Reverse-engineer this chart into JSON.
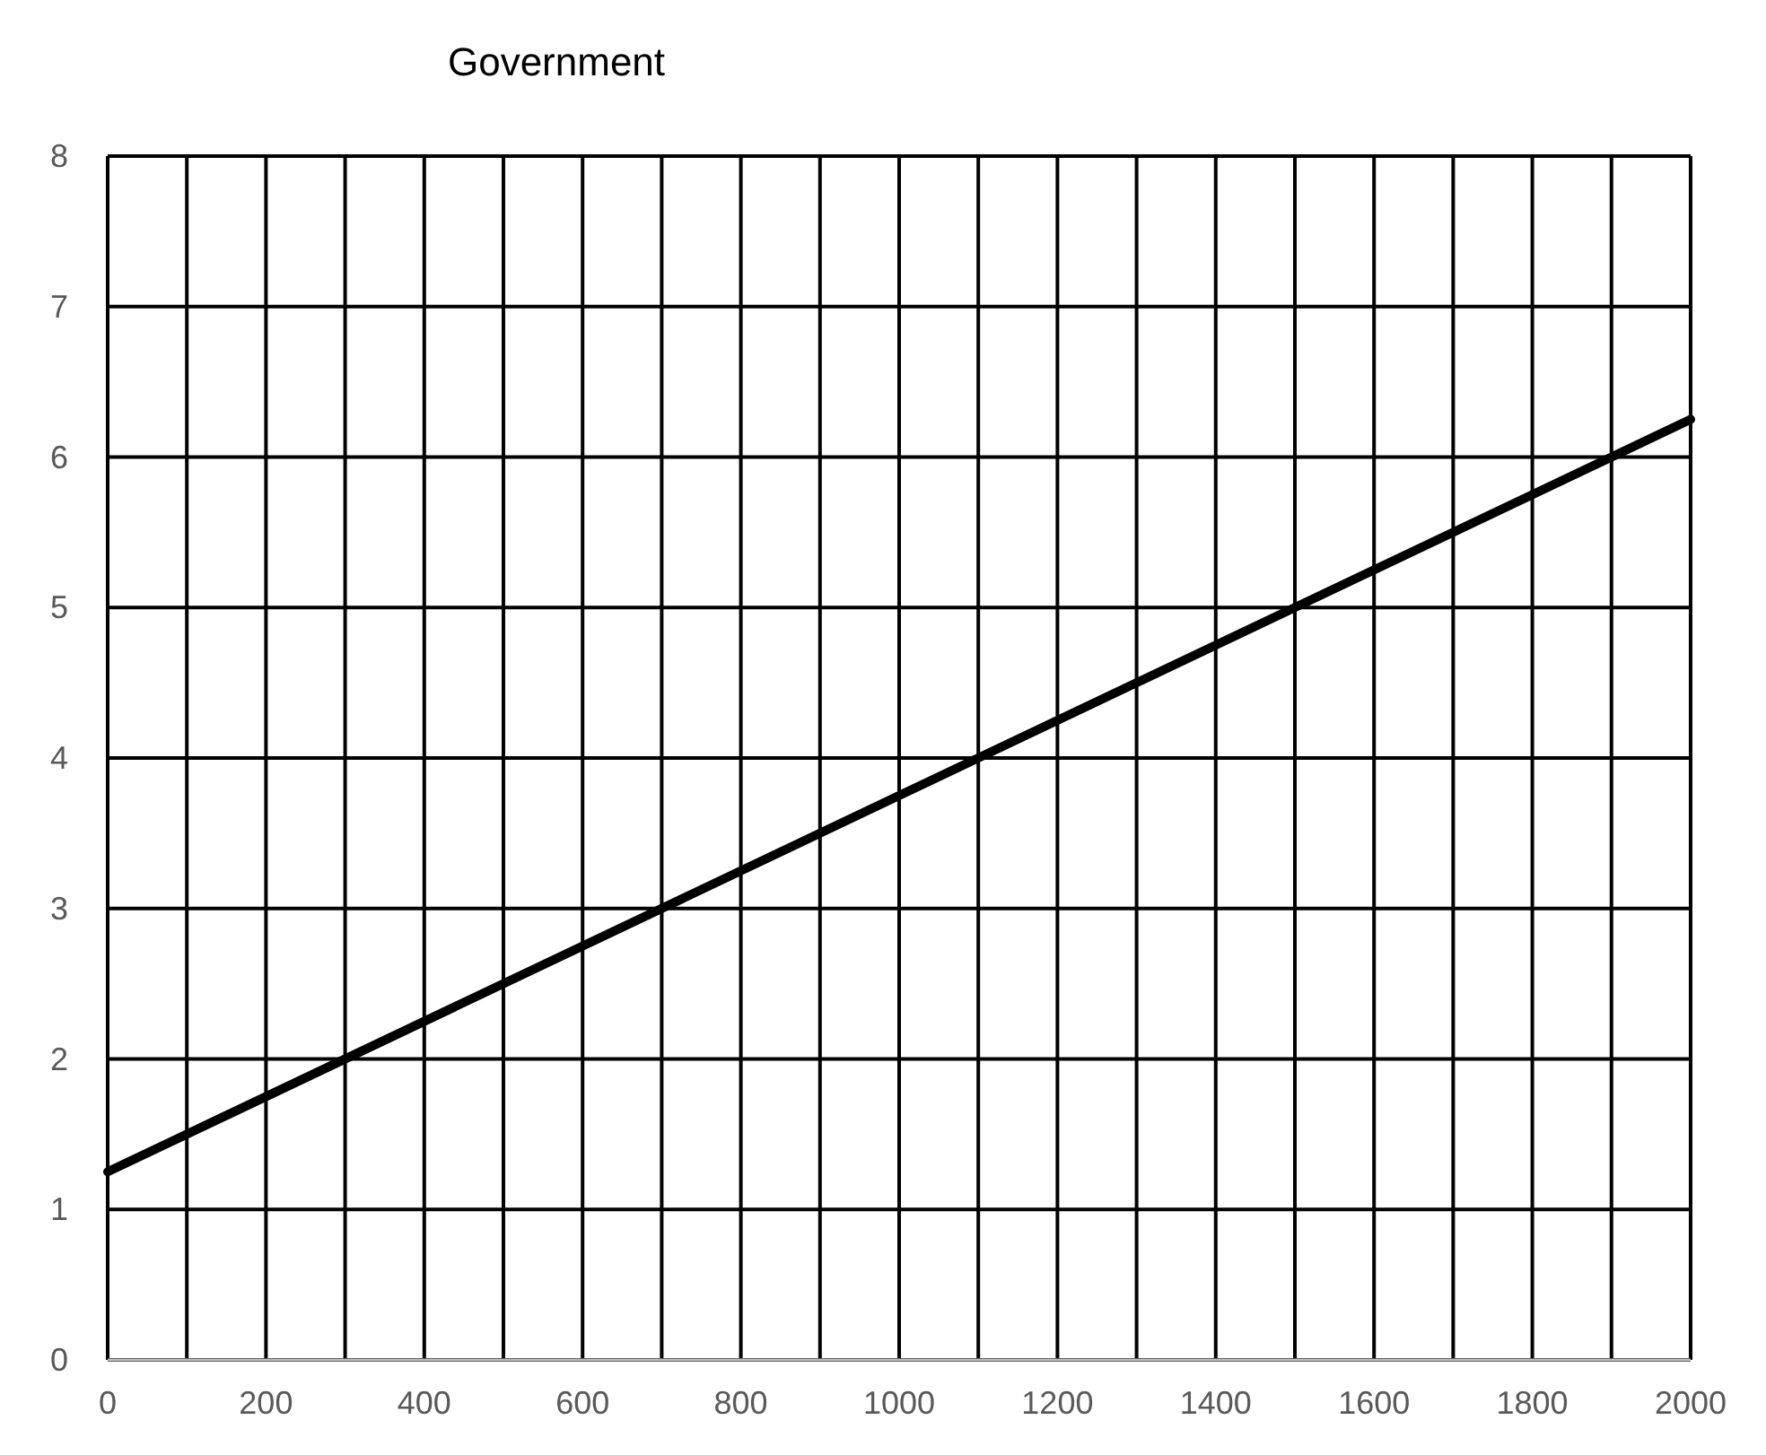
{
  "chart_data": {
    "type": "line",
    "title": "Government",
    "x": [
      0,
      2000
    ],
    "series": [
      {
        "color": "#000000",
        "values": [
          1.25,
          6.25
        ]
      }
    ],
    "xlim": [
      0,
      2000
    ],
    "xticks": [
      0,
      {
        "value": 100,
        "label": null
      },
      200,
      {
        "value": 300,
        "label": null
      },
      400,
      {
        "value": 500,
        "label": null
      },
      600,
      {
        "value": 700,
        "label": null
      },
      800,
      {
        "value": 900,
        "label": null
      },
      1000,
      {
        "value": 1100,
        "label": null
      },
      1200,
      {
        "value": 1300,
        "label": null
      },
      1400,
      {
        "value": 1500,
        "label": null
      },
      1600,
      {
        "value": 1700,
        "label": null
      },
      1800,
      {
        "value": 1900,
        "label": null
      },
      2000
    ],
    "ylim": [
      0,
      8
    ],
    "yticks": [
      0,
      1,
      2,
      3,
      4,
      5,
      6,
      7,
      8
    ],
    "grid": true,
    "marker": "none",
    "line_style": "solid"
  }
}
